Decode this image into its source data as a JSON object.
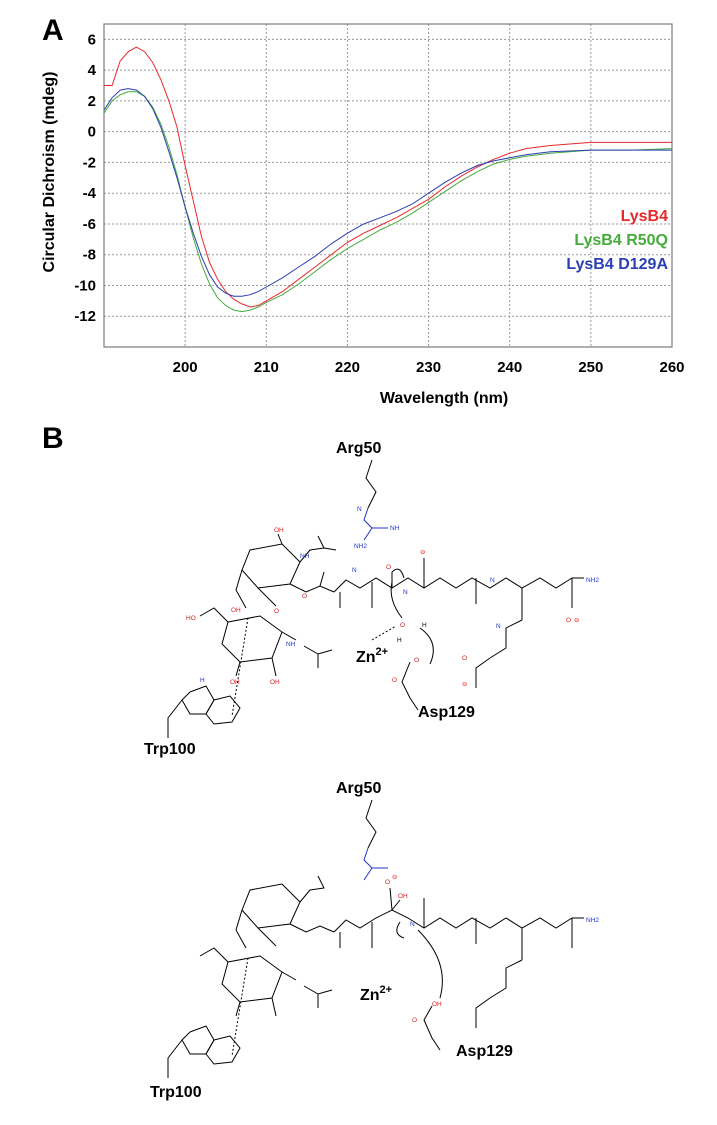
{
  "panel_a": {
    "letter": "A",
    "chart_data": {
      "type": "line",
      "title": "",
      "xlabel": "Wavelength (nm)",
      "ylabel": "Circular Dichroism (mdeg)",
      "xlim": [
        190,
        260
      ],
      "ylim": [
        -14,
        7
      ],
      "xticks": [
        200,
        210,
        220,
        230,
        240,
        250,
        260
      ],
      "yticks": [
        6,
        4,
        2,
        0,
        -2,
        -4,
        -6,
        -8,
        -10,
        -12
      ],
      "grid": "dotted",
      "legend_position": "right",
      "series": [
        {
          "name": "LysB4",
          "color": "#e8292b",
          "x": [
            190,
            191,
            192,
            193,
            194,
            195,
            196,
            197,
            198,
            199,
            200,
            201,
            202,
            203,
            204,
            205,
            206,
            207,
            208,
            209,
            210,
            212,
            214,
            216,
            218,
            220,
            222,
            224,
            226,
            228,
            230,
            232,
            234,
            236,
            238,
            240,
            242,
            245,
            250,
            255,
            260
          ],
          "y": [
            3.0,
            3.0,
            4.6,
            5.2,
            5.5,
            5.2,
            4.5,
            3.4,
            2.0,
            0.3,
            -2.2,
            -4.5,
            -6.8,
            -8.5,
            -9.6,
            -10.4,
            -10.9,
            -11.2,
            -11.4,
            -11.3,
            -11.0,
            -10.4,
            -9.6,
            -8.8,
            -8.0,
            -7.2,
            -6.6,
            -6.1,
            -5.6,
            -5.0,
            -4.4,
            -3.6,
            -2.9,
            -2.3,
            -1.8,
            -1.4,
            -1.1,
            -0.9,
            -0.7,
            -0.7,
            -0.7
          ]
        },
        {
          "name": "LysB4 R50Q",
          "color": "#45ac3c",
          "x": [
            190,
            191,
            192,
            193,
            194,
            195,
            196,
            197,
            198,
            199,
            200,
            201,
            202,
            203,
            204,
            205,
            206,
            207,
            208,
            209,
            210,
            212,
            214,
            216,
            218,
            220,
            222,
            224,
            226,
            228,
            230,
            232,
            234,
            236,
            238,
            240,
            242,
            245,
            250,
            255,
            260
          ],
          "y": [
            1.2,
            2.0,
            2.4,
            2.6,
            2.6,
            2.3,
            1.6,
            0.5,
            -1.0,
            -2.8,
            -4.9,
            -6.9,
            -8.6,
            -9.9,
            -10.8,
            -11.3,
            -11.6,
            -11.7,
            -11.6,
            -11.4,
            -11.1,
            -10.6,
            -9.9,
            -9.1,
            -8.3,
            -7.6,
            -7.0,
            -6.4,
            -5.9,
            -5.3,
            -4.6,
            -3.9,
            -3.2,
            -2.6,
            -2.1,
            -1.8,
            -1.6,
            -1.4,
            -1.2,
            -1.2,
            -1.1
          ]
        },
        {
          "name": "LysB4 D129A",
          "color": "#2c3fb2",
          "x": [
            190,
            191,
            192,
            193,
            194,
            195,
            196,
            197,
            198,
            199,
            200,
            201,
            202,
            203,
            204,
            205,
            206,
            207,
            208,
            209,
            210,
            212,
            214,
            216,
            218,
            220,
            222,
            224,
            226,
            228,
            230,
            232,
            234,
            236,
            238,
            240,
            242,
            245,
            250,
            255,
            260
          ],
          "y": [
            1.4,
            2.2,
            2.7,
            2.8,
            2.7,
            2.3,
            1.5,
            0.3,
            -1.3,
            -3.0,
            -4.9,
            -6.6,
            -8.1,
            -9.3,
            -10.1,
            -10.5,
            -10.7,
            -10.7,
            -10.6,
            -10.4,
            -10.1,
            -9.5,
            -8.8,
            -8.1,
            -7.3,
            -6.6,
            -6.0,
            -5.6,
            -5.2,
            -4.7,
            -4.0,
            -3.3,
            -2.7,
            -2.2,
            -1.9,
            -1.7,
            -1.5,
            -1.3,
            -1.2,
            -1.2,
            -1.2
          ]
        }
      ]
    }
  },
  "panel_b": {
    "letter": "B",
    "top": {
      "arg_label": "Arg50",
      "zn_label": "Zn",
      "zn_charge": "2+",
      "asp_label": "Asp129",
      "trp_label": "Trp100",
      "atom_labels": {
        "oh_ring1": "OH",
        "nh_ring1": "NH",
        "oh_ring1_left": "OH",
        "oh_ring2_left": "HO",
        "oh_ring2_a": "OH",
        "oh_ring2_b": "OH",
        "nh_ring2": "NH",
        "nh_indole": "H",
        "o_ether1": "O",
        "o_ether2": "O",
        "nh_pep1": "N",
        "nh_pep2": "N",
        "nh_pep3": "N",
        "nh_pep4": "N",
        "nh2_lys": "NH2",
        "o_carb1": "O",
        "o_carb2": "O",
        "o_carb3": "O",
        "guan_nh": "NH",
        "guan_nh2": "NH2",
        "guan_n": "N",
        "water_o": "O",
        "water_h1": "H",
        "water_h2": "H",
        "coo_minus": "⊖",
        "asp_o1": "O",
        "asp_o2": "O"
      }
    },
    "bottom": {
      "arg_label": "Arg50",
      "zn_label": "Zn",
      "zn_charge": "2+",
      "asp_label": "Asp129",
      "trp_label": "Trp100",
      "atom_labels": {
        "o_minus": "O",
        "o_minus_charge": "⊖",
        "oh_tet": "OH",
        "asp_oh": "OH",
        "asp_o": "O",
        "nh_pep": "N",
        "nh2_lys": "NH2"
      }
    }
  }
}
